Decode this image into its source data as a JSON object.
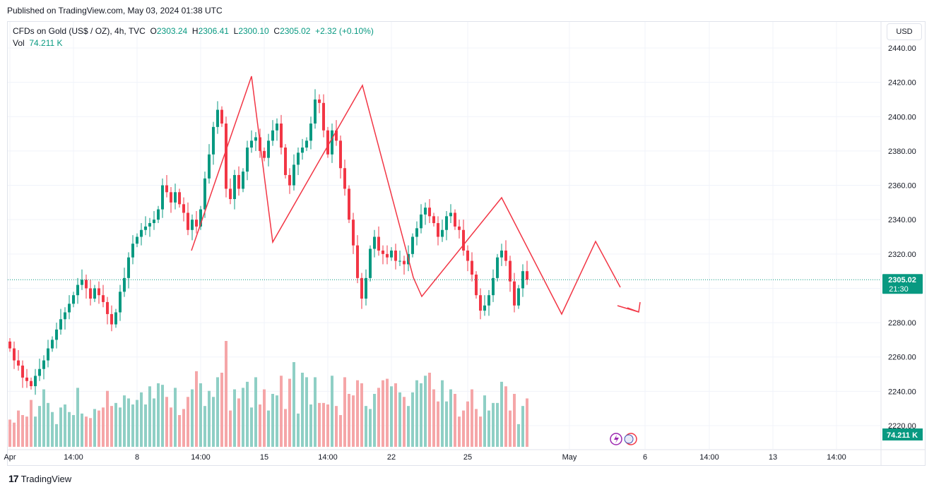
{
  "banner": {
    "text": "Published on TradingView.com, May 03, 2024 01:38 UTC"
  },
  "legend": {
    "symbol": "CFDs on Gold (US$ / OZ), 4h, TVC",
    "open_key": "O",
    "open": "2303.24",
    "high_key": "H",
    "high": "2306.41",
    "low_key": "L",
    "low": "2300.10",
    "close_key": "C",
    "close": "2305.02",
    "change": "+2.32 (+0.10%)",
    "vol_label": "Vol",
    "vol": "74.211 K"
  },
  "currency": "USD",
  "price_badge": {
    "price": "2305.02",
    "countdown": "21:30"
  },
  "volume_badge": "74.211 K",
  "footer": {
    "brand": "TradingView",
    "logo_glyph": "17"
  },
  "colors": {
    "up": "#089981",
    "down": "#f23645",
    "up_vol": "#8fcfc5",
    "down_vol": "#f5a6a8",
    "drawing": "#f23645"
  },
  "chart_data": {
    "type": "candlestick",
    "ylim": [
      2210,
      2450
    ],
    "y_ticks": [
      2220,
      2240,
      2260,
      2280,
      2300,
      2320,
      2340,
      2360,
      2380,
      2400,
      2420,
      2440
    ],
    "y_tick_labels": [
      "2220.00",
      "2240.00",
      "2260.00",
      "2280.00",
      "2300.00",
      "2320.00",
      "2340.00",
      "2360.00",
      "2380.00",
      "2400.00",
      "2420.00",
      "2440.00"
    ],
    "x_ticks": [
      "Apr",
      "14:00",
      "8",
      "14:00",
      "15",
      "14:00",
      "22",
      "25",
      "May",
      "6",
      "14:00",
      "13",
      "14:00"
    ],
    "last_price": 2305.02,
    "candles_close": [
      2265,
      2258,
      2255,
      2248,
      2246,
      2243,
      2249,
      2253,
      2258,
      2265,
      2270,
      2276,
      2282,
      2286,
      2291,
      2296,
      2302,
      2305,
      2300,
      2294,
      2300,
      2296,
      2292,
      2285,
      2279,
      2286,
      2298,
      2306,
      2318,
      2326,
      2330,
      2334,
      2336,
      2338,
      2340,
      2346,
      2360,
      2356,
      2350,
      2356,
      2349,
      2344,
      2334,
      2340,
      2336,
      2346,
      2364,
      2378,
      2394,
      2404,
      2396,
      2358,
      2352,
      2366,
      2358,
      2368,
      2382,
      2386,
      2388,
      2380,
      2376,
      2386,
      2392,
      2396,
      2382,
      2366,
      2360,
      2372,
      2379,
      2382,
      2386,
      2396,
      2410,
      2408,
      2392,
      2378,
      2392,
      2386,
      2370,
      2358,
      2340,
      2325,
      2306,
      2294,
      2306,
      2323,
      2330,
      2322,
      2320,
      2318,
      2322,
      2316,
      2316,
      2314,
      2320,
      2330,
      2335,
      2343,
      2347,
      2342,
      2338,
      2330,
      2334,
      2342,
      2344,
      2336,
      2334,
      2322,
      2316,
      2308,
      2296,
      2287,
      2290,
      2296,
      2306,
      2318,
      2322,
      2316,
      2304,
      2290,
      2300,
      2310,
      2305
    ],
    "volumes": [
      18,
      16,
      24,
      21,
      20,
      31,
      20,
      27,
      38,
      29,
      23,
      15,
      26,
      28,
      23,
      21,
      39,
      22,
      20,
      19,
      25,
      24,
      26,
      37,
      27,
      29,
      26,
      34,
      32,
      28,
      31,
      36,
      28,
      40,
      32,
      42,
      41,
      33,
      26,
      39,
      21,
      25,
      33,
      38,
      50,
      42,
      27,
      37,
      33,
      46,
      49,
      70,
      24,
      38,
      32,
      39,
      43,
      26,
      46,
      28,
      38,
      24,
      35,
      34,
      47,
      25,
      45,
      56,
      22,
      49,
      46,
      28,
      46,
      29,
      29,
      28,
      47,
      27,
      21,
      46,
      35,
      34,
      44,
      42,
      27,
      25,
      35,
      39,
      44,
      45,
      40,
      42,
      36,
      33,
      27,
      36,
      44,
      42,
      47,
      49,
      38,
      30,
      44,
      30,
      38,
      35,
      20,
      24,
      30,
      38,
      25,
      20,
      34,
      24,
      29,
      29,
      43,
      40,
      24,
      35,
      15,
      27,
      32
    ]
  }
}
